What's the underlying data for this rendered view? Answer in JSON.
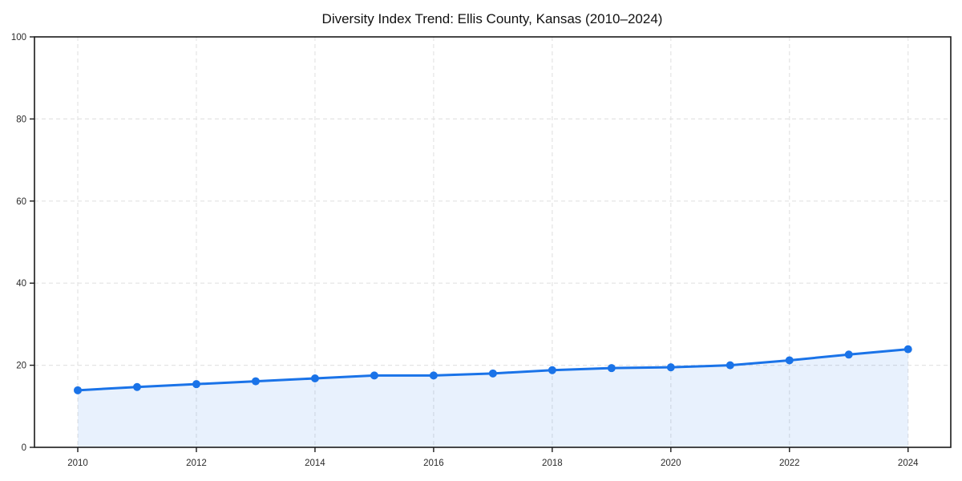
{
  "chart_data": {
    "type": "line",
    "title": "Diversity Index Trend: Ellis County, Kansas (2010–2024)",
    "series": [
      {
        "name": "Diversity Index",
        "x": [
          2010,
          2011,
          2012,
          2013,
          2014,
          2015,
          2016,
          2017,
          2018,
          2019,
          2020,
          2021,
          2022,
          2023,
          2024
        ],
        "values": [
          13.9,
          14.7,
          15.4,
          16.1,
          16.8,
          17.5,
          17.5,
          18.0,
          18.8,
          19.3,
          19.5,
          20.0,
          21.2,
          22.6,
          23.9
        ]
      }
    ],
    "xlabel": "",
    "ylabel": "",
    "xlim": [
      2009.27,
      2024.72
    ],
    "ylim": [
      0,
      100
    ],
    "xticks": [
      2010,
      2012,
      2014,
      2016,
      2018,
      2020,
      2022,
      2024
    ],
    "xtick_labels": [
      "2010",
      "2012",
      "2014",
      "2016",
      "2018",
      "2020",
      "2022",
      "2024"
    ],
    "yticks": [
      0,
      20,
      40,
      60,
      80,
      100
    ],
    "ytick_labels": [
      "0",
      "20",
      "40",
      "60",
      "80",
      "100"
    ],
    "grid": "dashed",
    "legend_position": "none",
    "marker": "circle",
    "area_fill_under_line": true,
    "colors": {
      "line": "#1a73e8",
      "marker": "#1a73e8",
      "area_fill": "rgba(26,115,232,0.10)",
      "grid": "#e4e4e4",
      "axis": "#1a1a1a",
      "tick_label": "#2b2b2b",
      "title": "#111111",
      "background": "#ffffff"
    }
  }
}
